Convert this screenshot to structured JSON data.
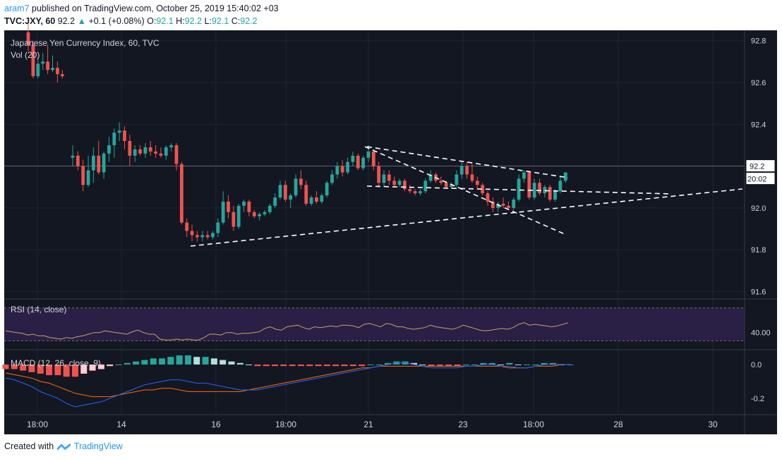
{
  "header": {
    "user": "aram7",
    "published": "published on TradingView.com, October 25, 2019 15:40:02 +03",
    "symbol": "TVC:JXY, 60",
    "last": "92.2",
    "change_arrow": "▲",
    "change": "+0.1 (+0.08%)",
    "o_label": "O:",
    "o_val": "92.1",
    "h_label": "H:",
    "h_val": "92.2",
    "l_label": "L:",
    "l_val": "92.1",
    "c_label": "C:",
    "c_val": "92.2"
  },
  "footer": {
    "created": "Created with",
    "brand": "TradingView"
  },
  "colors": {
    "bg": "#131722",
    "up": "#26a69a",
    "down": "#ef5350",
    "rsi_line": "#c7a463",
    "rsi_band": "#2a1f45",
    "macd_line": "#2962ff",
    "signal_line": "#ff6d00",
    "hist_up_strong": "#26a69a",
    "hist_up_weak": "#b2dfdb",
    "hist_down_strong": "#ef5350",
    "hist_down_weak": "#ffcdd2"
  },
  "chart_data": [
    {
      "type": "candlestick",
      "title": "Japanese Yen Currency Index, 60, TVC",
      "volume_label": "Vol (20)",
      "price_label": "92.2",
      "countdown": "20:02",
      "y_ticks": [
        "92.8",
        "92.6",
        "92.4",
        "92.2",
        "92.0",
        "91.8",
        "91.6"
      ],
      "ylim": [
        91.57,
        92.86
      ],
      "x_ticks": [
        "18:00",
        "14",
        "16",
        "18:00",
        "21",
        "23",
        "18:00",
        "28",
        "30"
      ],
      "candles": [
        [
          92.84,
          92.88,
          92.75,
          92.78
        ],
        [
          92.78,
          92.8,
          92.62,
          92.63
        ],
        [
          92.63,
          92.72,
          92.62,
          92.69
        ],
        [
          92.69,
          92.74,
          92.66,
          92.7
        ],
        [
          92.7,
          92.78,
          92.64,
          92.66
        ],
        [
          92.66,
          92.73,
          92.65,
          92.67
        ],
        [
          92.67,
          92.7,
          92.6,
          92.64
        ],
        [
          92.64,
          92.66,
          92.62,
          92.63
        ],
        [
          92.24,
          92.3,
          92.2,
          92.25
        ],
        [
          92.25,
          92.27,
          92.18,
          92.2
        ],
        [
          92.2,
          92.23,
          92.08,
          92.11
        ],
        [
          92.11,
          92.25,
          92.1,
          92.18
        ],
        [
          92.18,
          92.29,
          92.12,
          92.25
        ],
        [
          92.25,
          92.32,
          92.16,
          92.17
        ],
        [
          92.17,
          92.27,
          92.14,
          92.26
        ],
        [
          92.26,
          92.34,
          92.22,
          92.3
        ],
        [
          92.3,
          92.38,
          92.24,
          92.36
        ],
        [
          92.36,
          92.41,
          92.32,
          92.37
        ],
        [
          92.37,
          92.39,
          92.28,
          92.32
        ],
        [
          92.32,
          92.35,
          92.2,
          92.25
        ],
        [
          92.25,
          92.3,
          92.22,
          92.28
        ],
        [
          92.28,
          92.3,
          92.25,
          92.26
        ],
        [
          92.26,
          92.31,
          92.24,
          92.29
        ],
        [
          92.29,
          92.32,
          92.25,
          92.27
        ],
        [
          92.27,
          92.3,
          92.24,
          92.26
        ],
        [
          92.26,
          92.29,
          92.24,
          92.25
        ],
        [
          92.25,
          92.3,
          92.23,
          92.29
        ],
        [
          92.29,
          92.31,
          92.27,
          92.3
        ],
        [
          92.3,
          92.31,
          92.18,
          92.21
        ],
        [
          92.21,
          92.22,
          91.92,
          91.93
        ],
        [
          91.93,
          91.95,
          91.86,
          91.89
        ],
        [
          91.89,
          91.92,
          91.84,
          91.87
        ],
        [
          91.87,
          91.89,
          91.84,
          91.86
        ],
        [
          91.86,
          91.89,
          91.84,
          91.87
        ],
        [
          91.87,
          91.89,
          91.85,
          91.86
        ],
        [
          91.86,
          91.89,
          91.85,
          91.88
        ],
        [
          91.88,
          91.95,
          91.86,
          91.93
        ],
        [
          91.93,
          92.08,
          91.92,
          92.03
        ],
        [
          92.03,
          92.06,
          91.95,
          91.98
        ],
        [
          91.98,
          92.01,
          91.89,
          91.91
        ],
        [
          91.91,
          92.02,
          91.9,
          92.01
        ],
        [
          92.01,
          92.04,
          91.98,
          92.03
        ],
        [
          92.03,
          92.04,
          91.96,
          91.98
        ],
        [
          91.98,
          91.99,
          91.95,
          91.96
        ],
        [
          91.96,
          91.98,
          91.94,
          91.97
        ],
        [
          91.97,
          91.99,
          91.96,
          91.98
        ],
        [
          91.98,
          92.02,
          91.97,
          92.01
        ],
        [
          92.01,
          92.07,
          92.0,
          92.05
        ],
        [
          92.05,
          92.13,
          92.04,
          92.11
        ],
        [
          92.11,
          92.13,
          92.03,
          92.04
        ],
        [
          92.04,
          92.07,
          92.0,
          92.06
        ],
        [
          92.06,
          92.16,
          92.05,
          92.14
        ],
        [
          92.14,
          92.18,
          92.09,
          92.11
        ],
        [
          92.11,
          92.13,
          92.01,
          92.02
        ],
        [
          92.02,
          92.06,
          92.01,
          92.05
        ],
        [
          92.05,
          92.08,
          92.02,
          92.03
        ],
        [
          92.03,
          92.07,
          92.02,
          92.06
        ],
        [
          92.06,
          92.13,
          92.05,
          92.12
        ],
        [
          92.12,
          92.18,
          92.11,
          92.16
        ],
        [
          92.16,
          92.22,
          92.14,
          92.2
        ],
        [
          92.2,
          92.23,
          92.15,
          92.17
        ],
        [
          92.17,
          92.24,
          92.16,
          92.22
        ],
        [
          92.22,
          92.27,
          92.2,
          92.25
        ],
        [
          92.25,
          92.26,
          92.18,
          92.19
        ],
        [
          92.19,
          92.25,
          92.18,
          92.24
        ],
        [
          92.24,
          92.3,
          92.22,
          92.27
        ],
        [
          92.27,
          92.28,
          92.18,
          92.2
        ],
        [
          92.2,
          92.22,
          92.1,
          92.12
        ],
        [
          92.12,
          92.18,
          92.1,
          92.16
        ],
        [
          92.16,
          92.18,
          92.11,
          92.13
        ],
        [
          92.13,
          92.15,
          92.1,
          92.11
        ],
        [
          92.11,
          92.14,
          92.1,
          92.13
        ],
        [
          92.13,
          92.14,
          92.08,
          92.09
        ],
        [
          92.09,
          92.11,
          92.07,
          92.08
        ],
        [
          92.08,
          92.09,
          92.06,
          92.07
        ],
        [
          92.07,
          92.09,
          92.06,
          92.08
        ],
        [
          92.08,
          92.14,
          92.07,
          92.13
        ],
        [
          92.13,
          92.18,
          92.12,
          92.16
        ],
        [
          92.16,
          92.17,
          92.12,
          92.13
        ],
        [
          92.13,
          92.15,
          92.11,
          92.12
        ],
        [
          92.12,
          92.13,
          92.09,
          92.1
        ],
        [
          92.1,
          92.12,
          92.09,
          92.11
        ],
        [
          92.11,
          92.18,
          92.1,
          92.16
        ],
        [
          92.16,
          92.22,
          92.14,
          92.2
        ],
        [
          92.2,
          92.22,
          92.14,
          92.16
        ],
        [
          92.16,
          92.21,
          92.12,
          92.13
        ],
        [
          92.13,
          92.15,
          92.09,
          92.11
        ],
        [
          92.11,
          92.12,
          92.06,
          92.07
        ],
        [
          92.07,
          92.08,
          92.01,
          92.03
        ],
        [
          92.03,
          92.05,
          91.98,
          92.0
        ],
        [
          92.0,
          92.03,
          91.98,
          92.02
        ],
        [
          92.02,
          92.05,
          92.0,
          92.01
        ],
        [
          92.01,
          92.03,
          91.99,
          92.0
        ],
        [
          92.0,
          92.05,
          91.99,
          92.04
        ],
        [
          92.04,
          92.16,
          92.03,
          92.14
        ],
        [
          92.14,
          92.18,
          92.12,
          92.17
        ],
        [
          92.17,
          92.18,
          92.04,
          92.05
        ],
        [
          92.05,
          92.14,
          92.04,
          92.12
        ],
        [
          92.12,
          92.14,
          92.06,
          92.07
        ],
        [
          92.07,
          92.11,
          92.05,
          92.1
        ],
        [
          92.1,
          92.11,
          92.03,
          92.04
        ],
        [
          92.04,
          92.09,
          92.03,
          92.08
        ],
        [
          92.08,
          92.15,
          92.07,
          92.13
        ],
        [
          92.13,
          92.17,
          92.12,
          92.17
        ]
      ],
      "trend_lines": [
        [
          [
            18,
            92.3
          ],
          [
            42,
            91.9
          ]
        ],
        [
          [
            18,
            92.1
          ],
          [
            42,
            92.13
          ]
        ],
        [
          [
            14.5,
            91.82
          ],
          [
            100,
            92.08
          ]
        ]
      ]
    },
    {
      "type": "line",
      "title": "RSI (14, close)",
      "y_ticks": [
        "40.00"
      ],
      "ylim": [
        20,
        80
      ],
      "band": [
        30,
        70
      ],
      "values": [
        42,
        41,
        40,
        39,
        37,
        38,
        36,
        36,
        34,
        33,
        32,
        34,
        33,
        35,
        36,
        38,
        40,
        40,
        42,
        41,
        40,
        39,
        38,
        41,
        43,
        40,
        38,
        38,
        32,
        31,
        31,
        32,
        31,
        32,
        31,
        31,
        34,
        38,
        38,
        37,
        40,
        40,
        38,
        39,
        39,
        40,
        41,
        45,
        47,
        44,
        43,
        47,
        48,
        49,
        46,
        44,
        47,
        46,
        47,
        48,
        47,
        49,
        49,
        48,
        46,
        50,
        51,
        49,
        47,
        51,
        50,
        47,
        47,
        45,
        44,
        45,
        46,
        49,
        47,
        46,
        45,
        44,
        46,
        49,
        47,
        45,
        43,
        42,
        43,
        44,
        45,
        44,
        46,
        50,
        52,
        49,
        50,
        49,
        48,
        47,
        48,
        50,
        52
      ]
    },
    {
      "type": "bar",
      "title": "MACD (12, 26, close, 9)",
      "y_ticks": [
        "0.0",
        "-0.2"
      ],
      "ylim": [
        -0.3,
        0.05
      ],
      "macd": [
        -0.08,
        -0.09,
        -0.11,
        -0.13,
        -0.16,
        -0.18,
        -0.2,
        -0.23,
        -0.25,
        -0.24,
        -0.23,
        -0.22,
        -0.2,
        -0.18,
        -0.16,
        -0.14,
        -0.12,
        -0.11,
        -0.1,
        -0.09,
        -0.09,
        -0.1,
        -0.11,
        -0.11,
        -0.12,
        -0.13,
        -0.14,
        -0.15,
        -0.15,
        -0.15,
        -0.14,
        -0.13,
        -0.12,
        -0.11,
        -0.1,
        -0.09,
        -0.08,
        -0.07,
        -0.06,
        -0.05,
        -0.04,
        -0.03,
        -0.02,
        -0.01,
        0.0,
        0.01,
        0.01,
        0.0,
        -0.01,
        -0.02,
        -0.02,
        -0.02,
        -0.02,
        -0.01,
        -0.01,
        0.0,
        0.0,
        -0.01,
        -0.01,
        -0.02,
        -0.02,
        -0.01,
        0.0,
        0.0,
        0.0,
        0.0
      ],
      "signal": [
        -0.05,
        -0.06,
        -0.07,
        -0.08,
        -0.1,
        -0.11,
        -0.13,
        -0.15,
        -0.17,
        -0.18,
        -0.19,
        -0.19,
        -0.19,
        -0.18,
        -0.17,
        -0.16,
        -0.15,
        -0.15,
        -0.14,
        -0.14,
        -0.15,
        -0.16,
        -0.16,
        -0.16,
        -0.16,
        -0.16,
        -0.16,
        -0.16,
        -0.15,
        -0.14,
        -0.13,
        -0.12,
        -0.11,
        -0.1,
        -0.09,
        -0.08,
        -0.07,
        -0.06,
        -0.05,
        -0.04,
        -0.03,
        -0.02,
        -0.02,
        -0.01,
        -0.01,
        -0.01,
        -0.01,
        -0.01,
        -0.01,
        -0.01,
        -0.01,
        -0.01,
        -0.01,
        -0.01,
        -0.01,
        -0.01,
        -0.01,
        -0.01,
        -0.02,
        -0.02,
        -0.02,
        -0.01,
        -0.01,
        -0.01,
        0.0,
        0.0
      ],
      "histogram": [
        -0.03,
        -0.03,
        -0.04,
        -0.05,
        -0.06,
        -0.07,
        -0.07,
        -0.08,
        -0.08,
        -0.06,
        -0.04,
        -0.03,
        -0.01,
        0.0,
        0.01,
        0.02,
        0.03,
        0.04,
        0.04,
        0.05,
        0.06,
        0.06,
        0.05,
        0.05,
        0.04,
        0.03,
        0.02,
        0.01,
        0.0,
        -0.01,
        -0.01,
        -0.01,
        -0.01,
        -0.01,
        -0.01,
        -0.01,
        -0.01,
        -0.01,
        -0.01,
        -0.01,
        -0.01,
        -0.01,
        0.0,
        0.0,
        0.01,
        0.02,
        0.02,
        0.01,
        0.0,
        -0.01,
        -0.01,
        -0.01,
        -0.01,
        0.0,
        0.0,
        0.01,
        0.01,
        0.0,
        0.01,
        0.0,
        0.0,
        0.0,
        0.01,
        0.01,
        0.0,
        0.0
      ]
    }
  ]
}
